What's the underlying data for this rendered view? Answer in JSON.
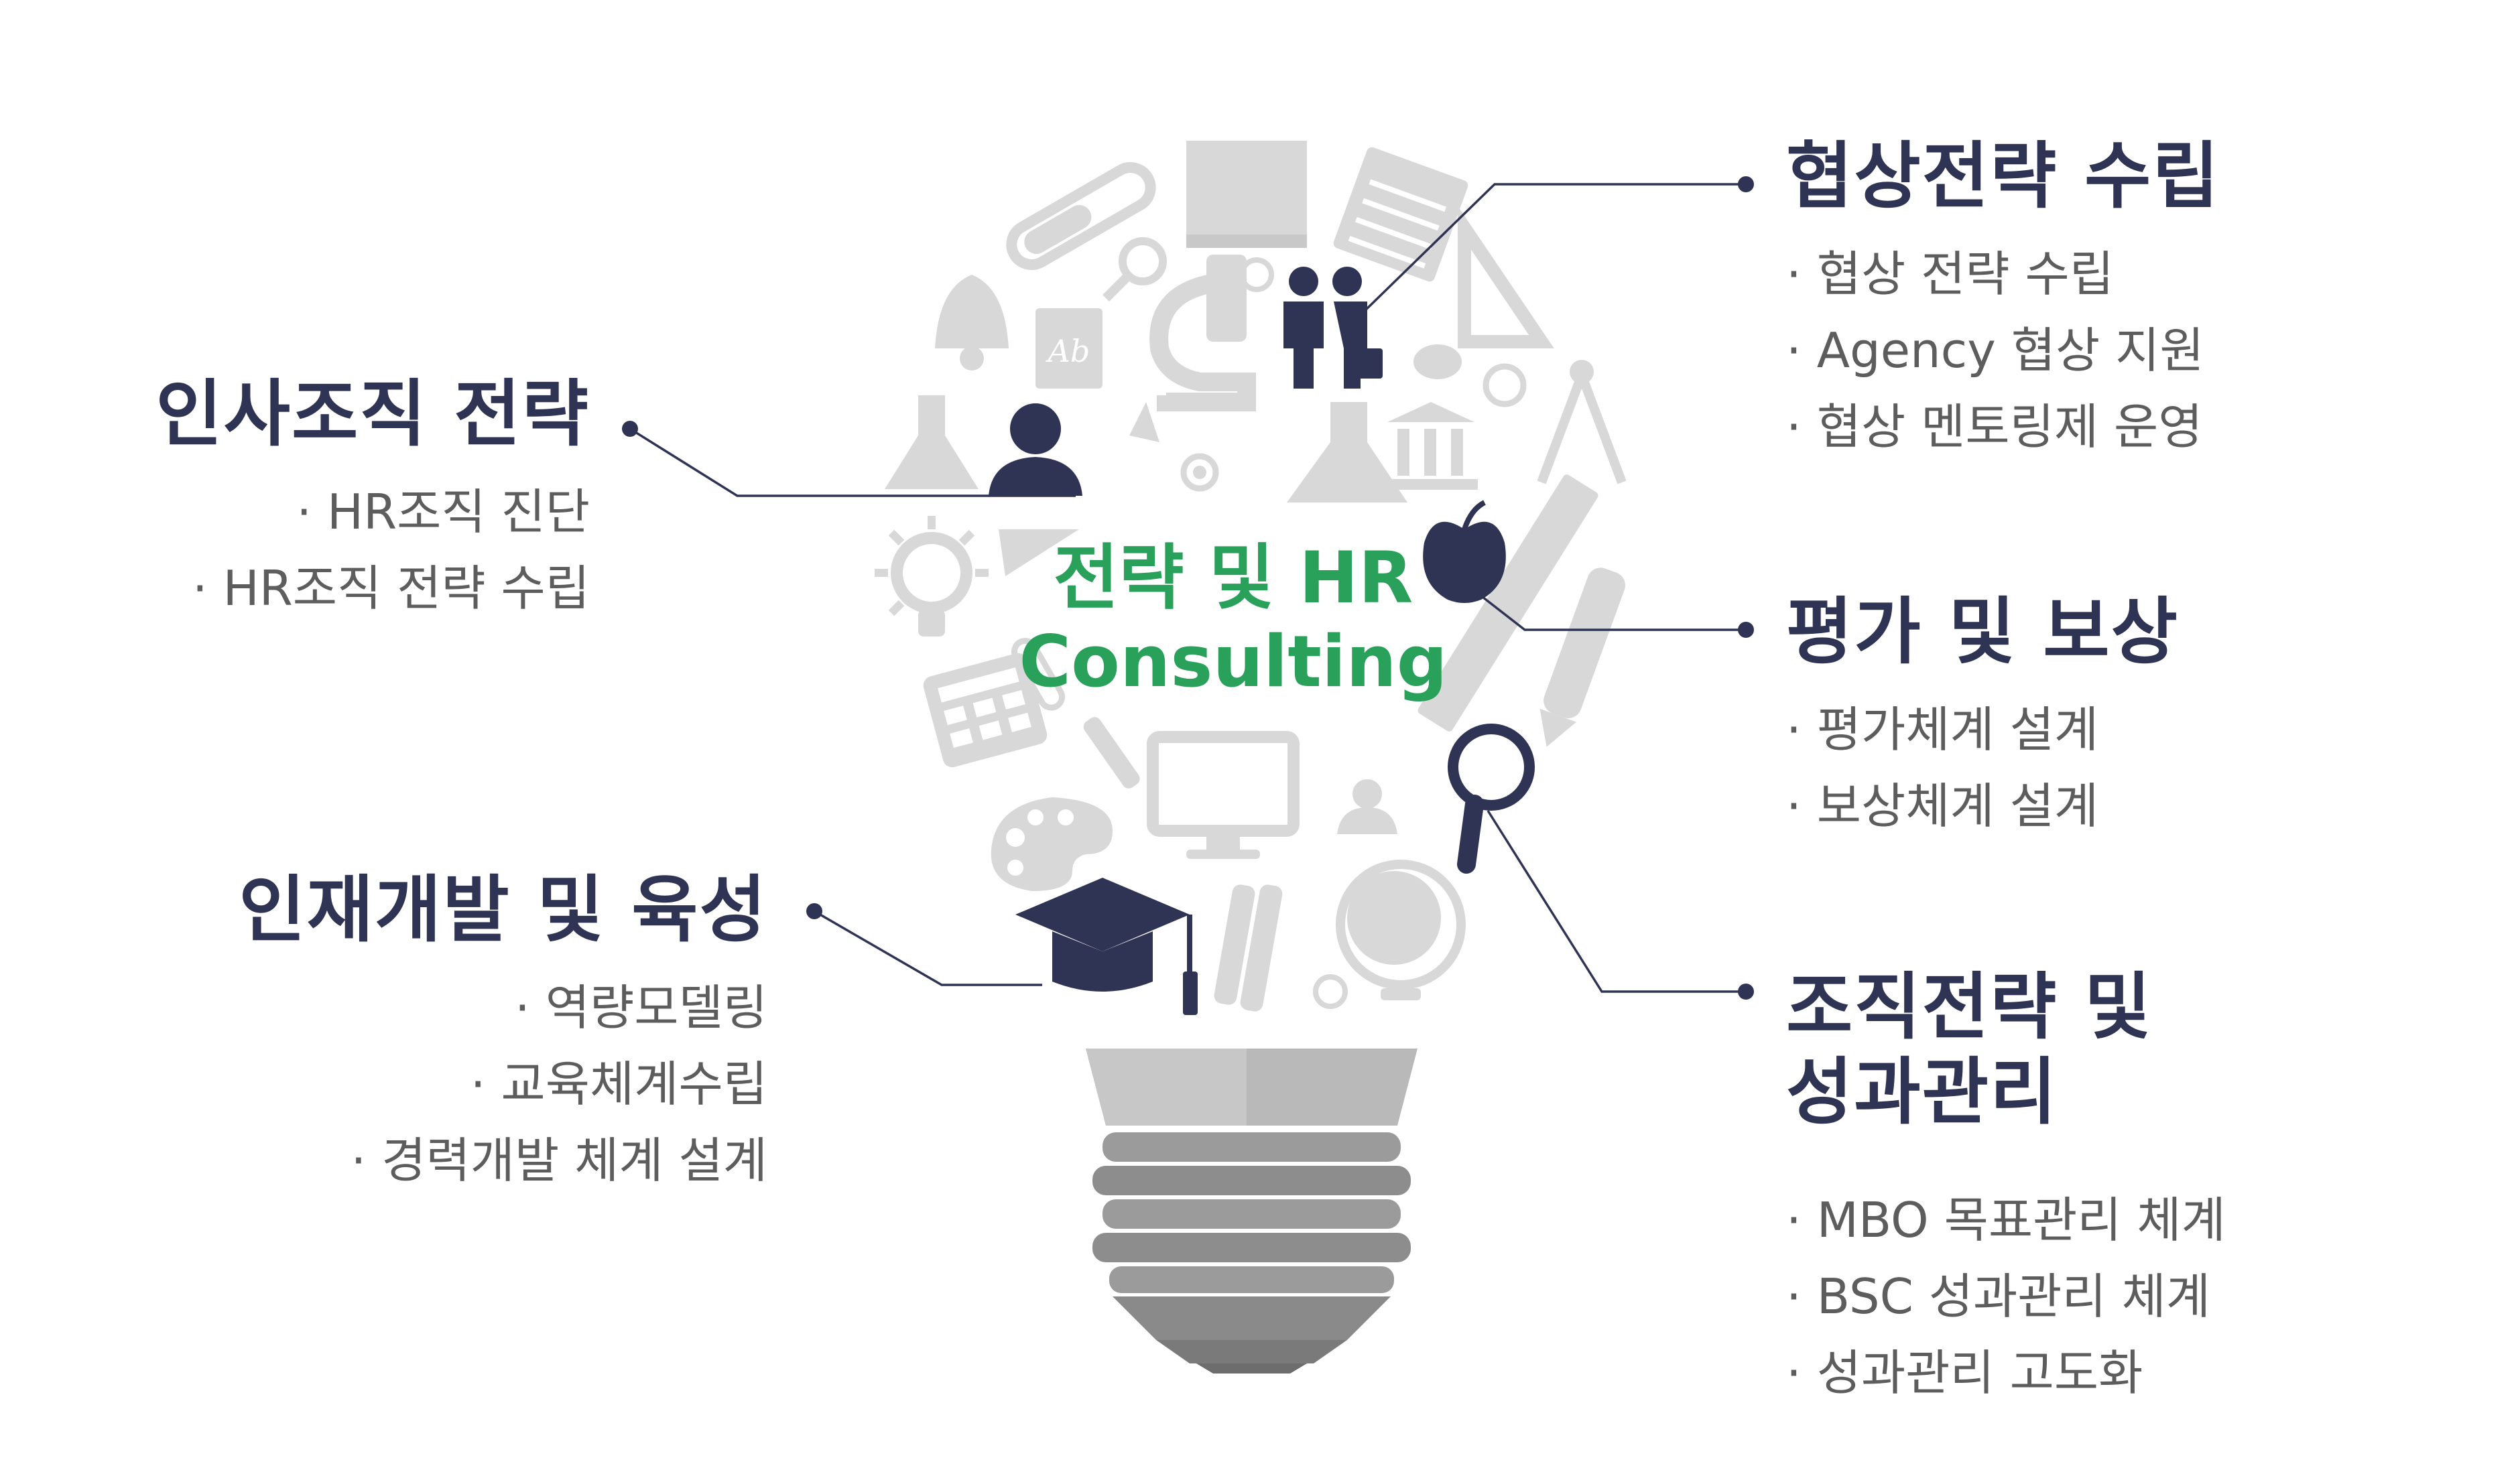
{
  "center": {
    "line1": "전략 및 HR",
    "line2": "Consulting"
  },
  "sections": {
    "hr_strategy": {
      "title": "인사조직 전략",
      "items": [
        "HR조직 진단",
        "HR조직 전략 수립"
      ]
    },
    "talent_dev": {
      "title": "인재개발 및 육성",
      "items": [
        "역량모델링",
        "교육체계수립",
        "경력개발 체계 설계"
      ]
    },
    "negotiation": {
      "title": "협상전략 수립",
      "items": [
        "협상 전략 수립",
        "Agency 협상 지원",
        "협상 멘토링제 운영"
      ]
    },
    "evaluation": {
      "title": "평가 및 보상",
      "items": [
        "평가체계 설계",
        "보상체계 설계"
      ]
    },
    "org_perf": {
      "title_line1": "조직전략 및",
      "title_line2": "성과관리",
      "items": [
        "MBO 목표관리 체계",
        "BSC 성과관리 체계",
        "성과관리 고도화"
      ]
    }
  },
  "icons": {
    "highlighted": [
      "handshake-icon",
      "person-icon",
      "apple-icon",
      "magnifier-icon",
      "graduation-cap-icon"
    ],
    "background": [
      "test-tube-icon",
      "book-icon",
      "notepad-icon",
      "triangle-ruler-icon",
      "bell-icon",
      "ab-book-icon",
      "microscope-icon",
      "flask-icon",
      "bank-icon",
      "palette-icon",
      "compass-icon",
      "lightbulb-icon",
      "pennant-icon",
      "calculator-icon",
      "ruler-icon",
      "pencil-icon",
      "monitor-icon",
      "globe-icon",
      "pens-icon"
    ]
  },
  "colors": {
    "navy": "#2f3455",
    "green": "#2aa15a",
    "gray_icon": "#d7d7d7",
    "text_gray": "#5d5d5d"
  }
}
